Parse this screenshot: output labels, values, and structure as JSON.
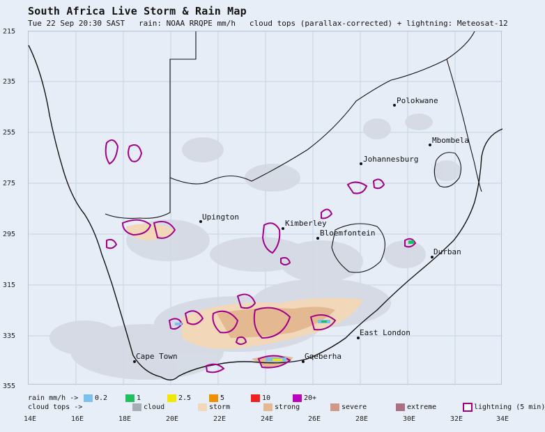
{
  "header": {
    "title": "South Africa Live Storm & Rain Map",
    "subtitle": "Tue 22 Sep 20:30 SAST   rain: NOAA RRQPE mm/h   cloud tops (parallax-corrected) + lightning: Meteosat-12"
  },
  "axes": {
    "lat_labels": [
      "215",
      "235",
      "255",
      "275",
      "295",
      "315",
      "335",
      "355"
    ],
    "lon_labels": [
      "14E",
      "16E",
      "18E",
      "20E",
      "22E",
      "24E",
      "26E",
      "28E",
      "30E",
      "32E",
      "34E"
    ]
  },
  "cities": [
    {
      "name": "Polokwane"
    },
    {
      "name": "Mbombela"
    },
    {
      "name": "Johannesburg"
    },
    {
      "name": "Upington"
    },
    {
      "name": "Kimberley"
    },
    {
      "name": "Bloemfontein"
    },
    {
      "name": "Durban"
    },
    {
      "name": "East London"
    },
    {
      "name": "Cape Town"
    },
    {
      "name": "Gqeberha"
    }
  ],
  "legend": {
    "rain_label": "rain mm/h ->",
    "cloud_label": "cloud tops ->",
    "rain": [
      {
        "label": "0.2",
        "color": "#7cc0f0"
      },
      {
        "label": "1",
        "color": "#20c060"
      },
      {
        "label": "2.5",
        "color": "#f0e800"
      },
      {
        "label": "5",
        "color": "#f09000"
      },
      {
        "label": "10",
        "color": "#f02020"
      },
      {
        "label": "20+",
        "color": "#c000c0"
      }
    ],
    "cloud": [
      {
        "label": "cloud",
        "color": "#a8acb4"
      },
      {
        "label": "storm",
        "color": "#f2d8b8"
      },
      {
        "label": "strong",
        "color": "#e4b890"
      },
      {
        "label": "severe",
        "color": "#d09888"
      },
      {
        "label": "extreme",
        "color": "#a87080"
      },
      {
        "label": "lightning (5 min)",
        "color": "#a0008a"
      }
    ]
  },
  "colors": {
    "land": "#e6edf7",
    "coast": "#111111",
    "lightning": "#a0008a"
  }
}
